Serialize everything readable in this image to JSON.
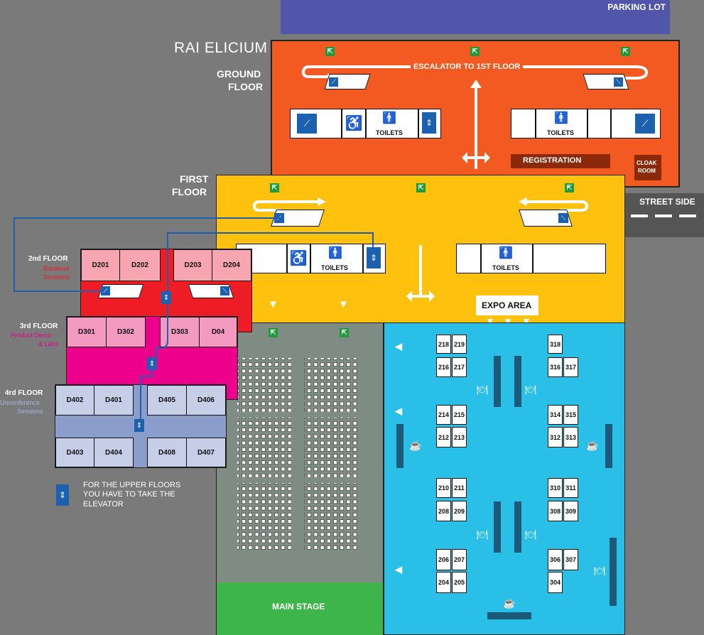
{
  "title": "RAI ELICIUM",
  "parking_lot": "PARKING LOT",
  "street_side": "STREET SIDE",
  "ground_floor": {
    "label_line1": "GROUND",
    "label_line2": "FLOOR",
    "escalator": "ESCALATOR TO 1ST FLOOR",
    "toilets_left": "TOILETS",
    "toilets_right": "TOILETS",
    "registration": "REGISTRATION",
    "cloak_line1": "CLOAK",
    "cloak_line2": "ROOM"
  },
  "first_floor": {
    "label_line1": "FIRST",
    "label_line2": "FLOOR",
    "toilets_left": "TOILETS",
    "toilets_right": "TOILETS",
    "expo_area": "EXPO AREA",
    "main_stage": "MAIN STAGE"
  },
  "floor2": {
    "label": "2nd FLOOR",
    "sub1": "Breakout",
    "sub2": "Sessions",
    "rooms": [
      "D201",
      "D202",
      "D203",
      "D204"
    ]
  },
  "floor3": {
    "label": "3rd FLOOR",
    "sub1": "Product Demo",
    "sub2": "& Labs",
    "rooms": [
      "D301",
      "D302",
      "D303",
      "D04"
    ]
  },
  "floor4": {
    "label": "4rd FLOOR",
    "sub1": "Unconference",
    "sub2": "Sessions",
    "rooms_top": [
      "D402",
      "D401",
      "D405",
      "D406"
    ],
    "rooms_bottom": [
      "D403",
      "D404",
      "D408",
      "D407"
    ]
  },
  "note": {
    "line1": "FOR THE UPPER FLOORS",
    "line2": "YOU HAVE TO TAKE THE",
    "line3": "ELEVATOR"
  },
  "booths_left": [
    [
      "218",
      "219"
    ],
    [
      "216",
      "217"
    ],
    [
      "214",
      "215"
    ],
    [
      "212",
      "213"
    ],
    [
      "210",
      "211"
    ],
    [
      "208",
      "209"
    ],
    [
      "206",
      "207"
    ],
    [
      "204",
      "205"
    ]
  ],
  "booths_right": [
    [
      "318",
      ""
    ],
    [
      "316",
      "317"
    ],
    [
      "314",
      "315"
    ],
    [
      "312",
      "313"
    ],
    [
      "310",
      "311"
    ],
    [
      "308",
      "309"
    ],
    [
      "306",
      "307"
    ],
    [
      "304",
      ""
    ]
  ],
  "colors": {
    "ground": "#f25a22",
    "first": "#fec20e",
    "expo": "#29bfe6",
    "stage": "#7f8c83",
    "stage_front": "#3db54a",
    "floor2": "#ee1c25",
    "floor3": "#ec008c",
    "floor4": "#8b9dcb",
    "parking": "#5056ab",
    "registration": "#8a2a0a"
  }
}
